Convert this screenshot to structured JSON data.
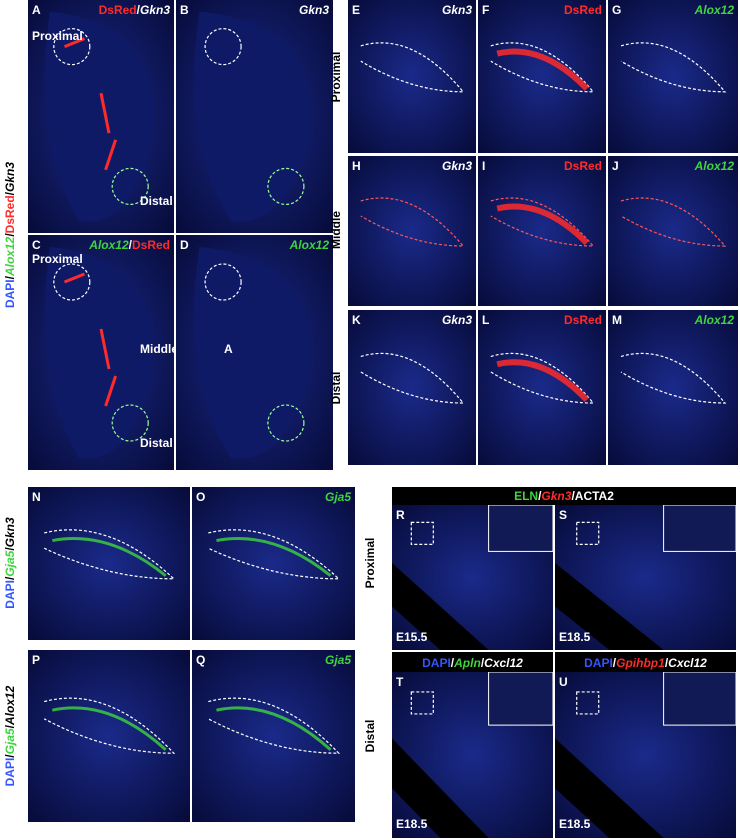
{
  "panels": [
    {
      "letter": "A",
      "label": [
        "DsRed",
        "/",
        "Gkn3"
      ],
      "notes": [
        "Proximal",
        "Distal"
      ]
    },
    {
      "letter": "B",
      "label": [
        "Gkn3"
      ],
      "notes": []
    },
    {
      "letter": "C",
      "label": [
        "Alox12",
        "/",
        "DsRed"
      ],
      "notes": [
        "Proximal",
        "Middle",
        "Distal"
      ]
    },
    {
      "letter": "D",
      "label": [
        "Alox12"
      ],
      "notes": [
        "A"
      ]
    },
    {
      "letter": "E",
      "label": [
        "Gkn3"
      ],
      "notes": []
    },
    {
      "letter": "F",
      "label": [
        "DsRed"
      ],
      "notes": []
    },
    {
      "letter": "G",
      "label": [
        "Alox12"
      ],
      "notes": []
    },
    {
      "letter": "H",
      "label": [
        "Gkn3"
      ],
      "notes": []
    },
    {
      "letter": "I",
      "label": [
        "DsRed"
      ],
      "notes": []
    },
    {
      "letter": "J",
      "label": [
        "Alox12"
      ],
      "notes": []
    },
    {
      "letter": "K",
      "label": [
        "Gkn3"
      ],
      "notes": []
    },
    {
      "letter": "L",
      "label": [
        "DsRed"
      ],
      "notes": []
    },
    {
      "letter": "M",
      "label": [
        "Alox12"
      ],
      "notes": []
    },
    {
      "letter": "N",
      "label": [],
      "notes": []
    },
    {
      "letter": "O",
      "label": [
        "Gja5"
      ],
      "notes": []
    },
    {
      "letter": "P",
      "label": [],
      "notes": []
    },
    {
      "letter": "Q",
      "label": [
        "Gja5"
      ],
      "notes": []
    },
    {
      "letter": "R",
      "label": [],
      "notes": [
        "E15.5"
      ]
    },
    {
      "letter": "S",
      "label": [],
      "notes": [
        "E18.5"
      ]
    },
    {
      "letter": "T",
      "label": [],
      "notes": [
        "E18.5"
      ]
    },
    {
      "letter": "U",
      "label": [],
      "notes": [
        "E18.5"
      ]
    }
  ],
  "side_labels": [
    [
      "DAPI",
      "/",
      "Alox12",
      "/",
      "DsRed",
      "/",
      "Gkn3"
    ],
    [
      "DAPI",
      "/",
      "Gja5",
      "/",
      "Gkn3"
    ],
    [
      "DAPI",
      "/",
      "Gja5",
      "/",
      "Alox12"
    ]
  ],
  "row_labels": [
    "Proximal",
    "Middle",
    "Distal",
    "Proximal",
    "Distal"
  ],
  "headers": [
    [
      "ELN",
      "/",
      "Gkn3",
      "/",
      "ACTA2"
    ],
    [
      "DAPI",
      "/",
      "Apln",
      "/",
      "Cxcl12"
    ],
    [
      "DAPI",
      "/",
      "Gpihbp1",
      "/",
      "Cxcl12"
    ]
  ]
}
